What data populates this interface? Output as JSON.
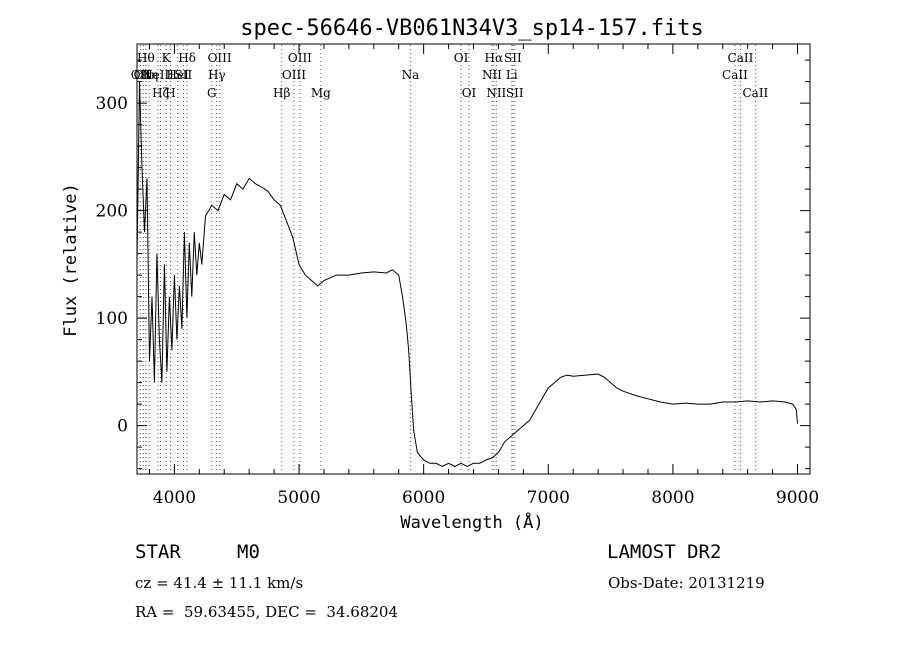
{
  "chart_data": {
    "type": "line",
    "title": "spec-56646-VB061N34V3_sp14-157.fits",
    "xlabel": "Wavelength (Å)",
    "ylabel": "Flux (relative)",
    "xlim": [
      3700,
      9100
    ],
    "ylim": [
      -45,
      355
    ],
    "xticks": [
      4000,
      5000,
      6000,
      7000,
      8000,
      9000
    ],
    "yticks": [
      0,
      100,
      200,
      300
    ],
    "grid": false,
    "series": [
      {
        "points": [
          [
            3700,
            150
          ],
          [
            3720,
            320
          ],
          [
            3740,
            240
          ],
          [
            3760,
            180
          ],
          [
            3780,
            230
          ],
          [
            3800,
            60
          ],
          [
            3820,
            120
          ],
          [
            3840,
            40
          ],
          [
            3860,
            160
          ],
          [
            3880,
            80
          ],
          [
            3900,
            40
          ],
          [
            3920,
            150
          ],
          [
            3940,
            50
          ],
          [
            3960,
            120
          ],
          [
            3980,
            70
          ],
          [
            4000,
            140
          ],
          [
            4020,
            80
          ],
          [
            4040,
            130
          ],
          [
            4060,
            90
          ],
          [
            4080,
            180
          ],
          [
            4100,
            100
          ],
          [
            4120,
            170
          ],
          [
            4140,
            120
          ],
          [
            4160,
            180
          ],
          [
            4180,
            140
          ],
          [
            4200,
            170
          ],
          [
            4220,
            150
          ],
          [
            4250,
            195
          ],
          [
            4300,
            205
          ],
          [
            4350,
            200
          ],
          [
            4400,
            215
          ],
          [
            4450,
            210
          ],
          [
            4500,
            225
          ],
          [
            4550,
            220
          ],
          [
            4600,
            230
          ],
          [
            4650,
            225
          ],
          [
            4700,
            222
          ],
          [
            4750,
            218
          ],
          [
            4800,
            210
          ],
          [
            4850,
            205
          ],
          [
            4900,
            190
          ],
          [
            4950,
            175
          ],
          [
            5000,
            150
          ],
          [
            5050,
            140
          ],
          [
            5100,
            135
          ],
          [
            5150,
            130
          ],
          [
            5200,
            135
          ],
          [
            5300,
            140
          ],
          [
            5400,
            140
          ],
          [
            5500,
            142
          ],
          [
            5600,
            143
          ],
          [
            5700,
            142
          ],
          [
            5750,
            145
          ],
          [
            5800,
            140
          ],
          [
            5830,
            120
          ],
          [
            5860,
            95
          ],
          [
            5880,
            70
          ],
          [
            5900,
            30
          ],
          [
            5920,
            -5
          ],
          [
            5950,
            -25
          ],
          [
            6000,
            -32
          ],
          [
            6050,
            -35
          ],
          [
            6100,
            -35
          ],
          [
            6150,
            -38
          ],
          [
            6200,
            -35
          ],
          [
            6250,
            -38
          ],
          [
            6300,
            -35
          ],
          [
            6350,
            -38
          ],
          [
            6400,
            -35
          ],
          [
            6450,
            -35
          ],
          [
            6500,
            -32
          ],
          [
            6550,
            -30
          ],
          [
            6600,
            -25
          ],
          [
            6650,
            -15
          ],
          [
            6700,
            -10
          ],
          [
            6750,
            -5
          ],
          [
            6800,
            0
          ],
          [
            6850,
            5
          ],
          [
            6900,
            15
          ],
          [
            6950,
            25
          ],
          [
            7000,
            35
          ],
          [
            7050,
            40
          ],
          [
            7100,
            45
          ],
          [
            7150,
            47
          ],
          [
            7200,
            46
          ],
          [
            7300,
            47
          ],
          [
            7400,
            48
          ],
          [
            7450,
            45
          ],
          [
            7500,
            40
          ],
          [
            7550,
            35
          ],
          [
            7600,
            32
          ],
          [
            7700,
            28
          ],
          [
            7800,
            25
          ],
          [
            7900,
            22
          ],
          [
            8000,
            20
          ],
          [
            8100,
            21
          ],
          [
            8200,
            20
          ],
          [
            8300,
            20
          ],
          [
            8400,
            22
          ],
          [
            8500,
            22
          ],
          [
            8600,
            23
          ],
          [
            8700,
            22
          ],
          [
            8800,
            23
          ],
          [
            8900,
            22
          ],
          [
            8960,
            20
          ],
          [
            8990,
            15
          ],
          [
            9000,
            2
          ]
        ]
      }
    ],
    "lines": [
      {
        "wavelength": 3727,
        "labels": [
          {
            "row": 2,
            "text": "OII"
          }
        ]
      },
      {
        "wavelength": 3750,
        "labels": [
          {
            "row": 2,
            "text": "OII"
          }
        ]
      },
      {
        "wavelength": 3771,
        "labels": [
          {
            "row": 1,
            "text": "Hθ"
          }
        ]
      },
      {
        "wavelength": 3798,
        "labels": [
          {
            "row": 2,
            "text": "Hη"
          }
        ]
      },
      {
        "wavelength": 3869,
        "labels": [
          {
            "row": 2,
            "text": "NeIII"
          }
        ]
      },
      {
        "wavelength": 3889,
        "labels": [
          {
            "row": 3,
            "text": "Hζ"
          }
        ]
      },
      {
        "wavelength": 3934,
        "labels": [
          {
            "row": 1,
            "text": "K"
          }
        ]
      },
      {
        "wavelength": 3969,
        "labels": [
          {
            "row": 3,
            "text": "H"
          }
        ]
      },
      {
        "wavelength": 4026,
        "labels": [
          {
            "row": 2,
            "text": "HeI"
          }
        ]
      },
      {
        "wavelength": 4072,
        "labels": [
          {
            "row": 2,
            "text": "SII"
          }
        ]
      },
      {
        "wavelength": 4102,
        "labels": [
          {
            "row": 1,
            "text": "Hδ"
          }
        ]
      },
      {
        "wavelength": 4300,
        "labels": [
          {
            "row": 3,
            "text": "G"
          }
        ]
      },
      {
        "wavelength": 4340,
        "labels": [
          {
            "row": 2,
            "text": "Hγ"
          }
        ]
      },
      {
        "wavelength": 4363,
        "labels": [
          {
            "row": 1,
            "text": "OIII"
          }
        ]
      },
      {
        "wavelength": 4861,
        "labels": [
          {
            "row": 3,
            "text": "Hβ"
          }
        ]
      },
      {
        "wavelength": 4959,
        "labels": [
          {
            "row": 2,
            "text": "OIII"
          }
        ]
      },
      {
        "wavelength": 5007,
        "labels": [
          {
            "row": 1,
            "text": "OIII"
          }
        ]
      },
      {
        "wavelength": 5175,
        "labels": [
          {
            "row": 3,
            "text": "Mg"
          }
        ]
      },
      {
        "wavelength": 5894,
        "labels": [
          {
            "row": 2,
            "text": "Na"
          }
        ]
      },
      {
        "wavelength": 6300,
        "labels": [
          {
            "row": 1,
            "text": "OI"
          }
        ]
      },
      {
        "wavelength": 6364,
        "labels": [
          {
            "row": 3,
            "text": "OI"
          }
        ]
      },
      {
        "wavelength": 6548,
        "labels": [
          {
            "row": 2,
            "text": "NII"
          }
        ]
      },
      {
        "wavelength": 6563,
        "labels": [
          {
            "row": 1,
            "text": "Hα"
          }
        ]
      },
      {
        "wavelength": 6583,
        "labels": [
          {
            "row": 3,
            "text": "NII"
          }
        ]
      },
      {
        "wavelength": 6707,
        "labels": [
          {
            "row": 2,
            "text": "Li"
          }
        ]
      },
      {
        "wavelength": 6716,
        "labels": [
          {
            "row": 1,
            "text": "SII"
          }
        ]
      },
      {
        "wavelength": 6731,
        "labels": [
          {
            "row": 3,
            "text": "SII"
          }
        ]
      },
      {
        "wavelength": 8498,
        "labels": [
          {
            "row": 2,
            "text": "CaII"
          }
        ]
      },
      {
        "wavelength": 8542,
        "labels": [
          {
            "row": 1,
            "text": "CaII"
          }
        ]
      },
      {
        "wavelength": 8662,
        "labels": [
          {
            "row": 3,
            "text": "CaII"
          }
        ]
      }
    ]
  },
  "info": {
    "object_class": "STAR",
    "subclass": "M0",
    "survey": "LAMOST DR2",
    "cz": "cz = 41.4 ± 11.1 km/s",
    "obs_date": "Obs-Date: 20131219",
    "coords": "RA =  59.63455, DEC =  34.68204"
  },
  "colors": {
    "ink": "#000000",
    "background": "#ffffff",
    "marker_lines": "#555555"
  }
}
